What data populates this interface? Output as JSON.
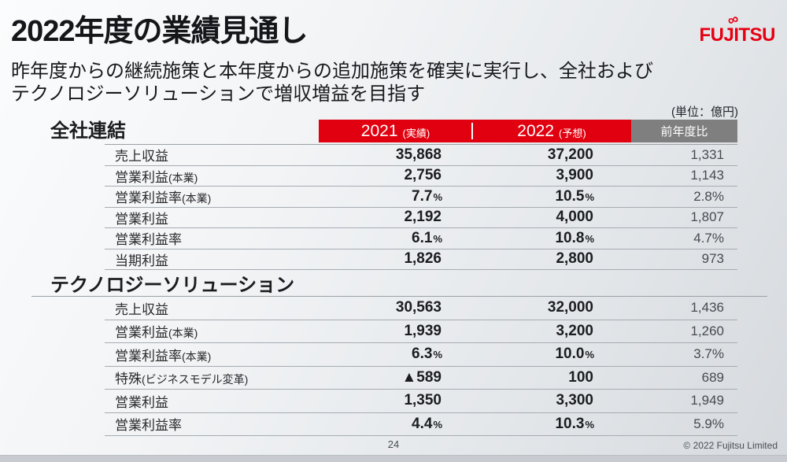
{
  "slide": {
    "title": "2022年度の業績見通し",
    "subtitle_line1": "昨年度からの継続施策と本年度からの追加施策を確実に実行し、全社および",
    "subtitle_line2": "テクノロジーソリューションで増収増益を目指す",
    "unit_note": "(単位：億円)"
  },
  "logo": {
    "text": "FUJITSU",
    "symbol": "∞",
    "color": "#e60012"
  },
  "colors": {
    "header_red": "#e1000f",
    "header_gray": "#7f7f7f",
    "logo_red": "#e60012"
  },
  "columns": {
    "y2021": "2021",
    "y2021_note": "(実績)",
    "y2022": "2022",
    "y2022_note": "(予想)",
    "yoy": "前年度比"
  },
  "sections": [
    {
      "heading": "全社連結",
      "rows": [
        {
          "label": "売上収益",
          "note": "",
          "v2021": "35,868",
          "s2021": "",
          "v2022": "37,200",
          "s2022": "",
          "yoy": "1,331"
        },
        {
          "label": "営業利益",
          "note": "(本業)",
          "v2021": "2,756",
          "s2021": "",
          "v2022": "3,900",
          "s2022": "",
          "yoy": "1,143"
        },
        {
          "label": "営業利益率",
          "note": "(本業)",
          "v2021": "7.7",
          "s2021": "%",
          "v2022": "10.5",
          "s2022": "%",
          "yoy": "2.8%"
        },
        {
          "label": "営業利益",
          "note": "",
          "v2021": "2,192",
          "s2021": "",
          "v2022": "4,000",
          "s2022": "",
          "yoy": "1,807"
        },
        {
          "label": "営業利益率",
          "note": "",
          "v2021": "6.1",
          "s2021": "%",
          "v2022": "10.8",
          "s2022": "%",
          "yoy": "4.7%"
        },
        {
          "label": "当期利益",
          "note": "",
          "v2021": "1,826",
          "s2021": "",
          "v2022": "2,800",
          "s2022": "",
          "yoy": "973"
        }
      ]
    },
    {
      "heading": "テクノロジーソリューション",
      "rows": [
        {
          "label": "売上収益",
          "note": "",
          "v2021": "30,563",
          "s2021": "",
          "v2022": "32,000",
          "s2022": "",
          "yoy": "1,436"
        },
        {
          "label": "営業利益",
          "note": "(本業)",
          "v2021": "1,939",
          "s2021": "",
          "v2022": "3,200",
          "s2022": "",
          "yoy": "1,260"
        },
        {
          "label": "営業利益率",
          "note": "(本業)",
          "v2021": "6.3",
          "s2021": "%",
          "v2022": "10.0",
          "s2022": "%",
          "yoy": "3.7%"
        },
        {
          "label": "特殊",
          "note": "(ビジネスモデル変革)",
          "v2021": "▲589",
          "s2021": "",
          "v2022": "100",
          "s2022": "",
          "yoy": "689"
        },
        {
          "label": "営業利益",
          "note": "",
          "v2021": "1,350",
          "s2021": "",
          "v2022": "3,300",
          "s2022": "",
          "yoy": "1,949"
        },
        {
          "label": "営業利益率",
          "note": "",
          "v2021": "4.4",
          "s2021": "%",
          "v2022": "10.3",
          "s2022": "%",
          "yoy": "5.9%"
        }
      ]
    }
  ],
  "footer": {
    "page_number": "24",
    "copyright": "© 2022 Fujitsu Limited"
  }
}
